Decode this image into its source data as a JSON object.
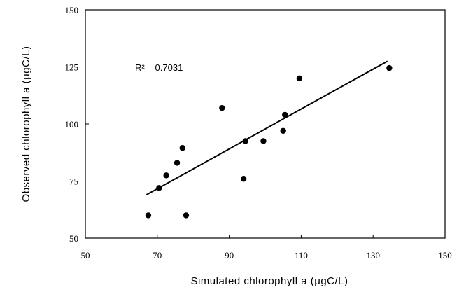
{
  "chart_data": {
    "type": "scatter",
    "xlabel": "Simulated chlorophyll  a (μgC/L)",
    "ylabel": "Observed chlorophyll    a (μgC/L)",
    "xlim": [
      50,
      150
    ],
    "ylim": [
      50,
      150
    ],
    "xticks": [
      50,
      70,
      90,
      110,
      130,
      150
    ],
    "yticks": [
      50,
      75,
      100,
      125,
      150
    ],
    "grid": false,
    "annotation": "R² = 0.7031",
    "points": [
      {
        "x": 67.5,
        "y": 60
      },
      {
        "x": 70.5,
        "y": 72
      },
      {
        "x": 72.5,
        "y": 77.5
      },
      {
        "x": 75.5,
        "y": 83
      },
      {
        "x": 77,
        "y": 89.5
      },
      {
        "x": 78,
        "y": 60
      },
      {
        "x": 88,
        "y": 107
      },
      {
        "x": 94,
        "y": 76
      },
      {
        "x": 94.5,
        "y": 92.5
      },
      {
        "x": 99.5,
        "y": 92.5
      },
      {
        "x": 105,
        "y": 97
      },
      {
        "x": 105.5,
        "y": 104
      },
      {
        "x": 109.5,
        "y": 120
      },
      {
        "x": 134.5,
        "y": 124.5
      }
    ],
    "trendline": {
      "x": [
        67,
        134
      ],
      "y": [
        69,
        127.5
      ]
    },
    "colors": {
      "marker": "#000000",
      "line": "#000000",
      "frame": "#000000"
    }
  }
}
